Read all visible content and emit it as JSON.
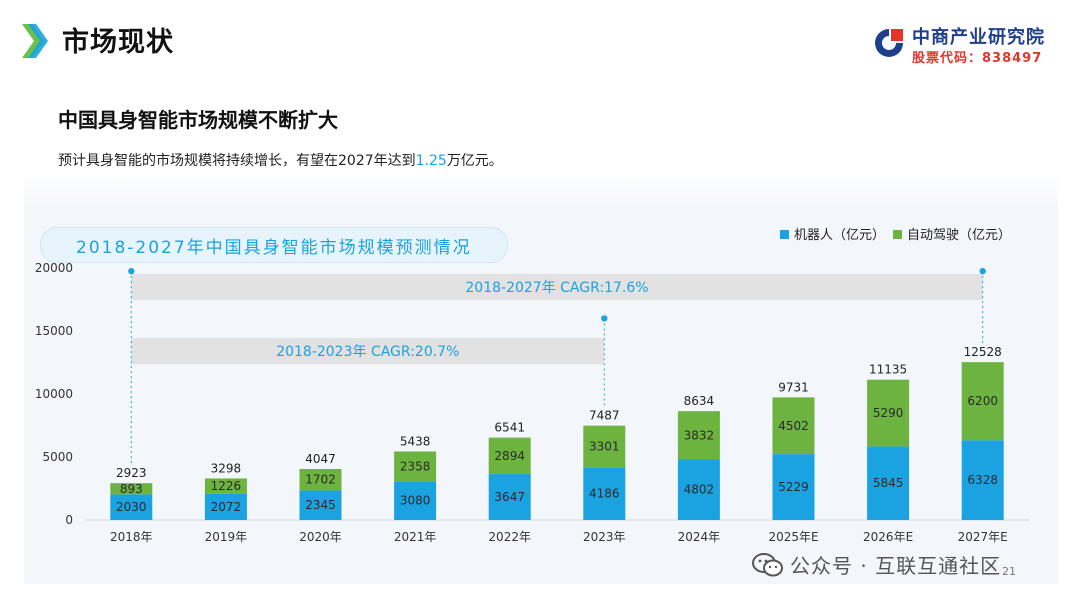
{
  "header": {
    "title": "市场现状",
    "brand_name": "中商产业研究院",
    "brand_code": "股票代码：838497"
  },
  "content": {
    "heading": "中国具身智能市场规模不断扩大",
    "desc_before": "预计具身智能的市场规模将持续增长，有望在2027年达到",
    "desc_highlight": "1.25",
    "desc_after": "万亿元。"
  },
  "footer": {
    "account": "公众号 · 互联互通社区",
    "page_number": "21"
  },
  "colors": {
    "robot": "#1aa3e0",
    "driving": "#6db33f",
    "accent": "#1aa3e0"
  },
  "chart_data": {
    "type": "bar",
    "stacked": true,
    "title": "2018-2027年中国具身智能市场规模预测情况",
    "categories": [
      "2018年",
      "2019年",
      "2020年",
      "2021年",
      "2022年",
      "2023年",
      "2024年",
      "2025年E",
      "2026年E",
      "2027年E"
    ],
    "series": [
      {
        "name": "机器人（亿元）",
        "color": "#1aa3e0",
        "values": [
          2030,
          2072,
          2345,
          3080,
          3647,
          4186,
          4802,
          5229,
          5845,
          6328
        ]
      },
      {
        "name": "自动驾驶（亿元）",
        "color": "#6db33f",
        "values": [
          893,
          1226,
          1702,
          2358,
          2894,
          3301,
          3832,
          4502,
          5290,
          6200
        ]
      }
    ],
    "totals": [
      2923,
      3298,
      4047,
      5438,
      6541,
      7487,
      8634,
      9731,
      11135,
      12528
    ],
    "ylim": [
      0,
      20000
    ],
    "yticks": [
      0,
      5000,
      10000,
      15000,
      20000
    ],
    "legend_position": "top-right",
    "grid": false,
    "annotations": [
      {
        "label": "2018-2027年 CAGR:17.6%",
        "from": "2018年",
        "to": "2027年E",
        "level": 18500
      },
      {
        "label": "2018-2023年 CAGR:20.7%",
        "from": "2018年",
        "to": "2023年",
        "level": 13400
      }
    ]
  }
}
